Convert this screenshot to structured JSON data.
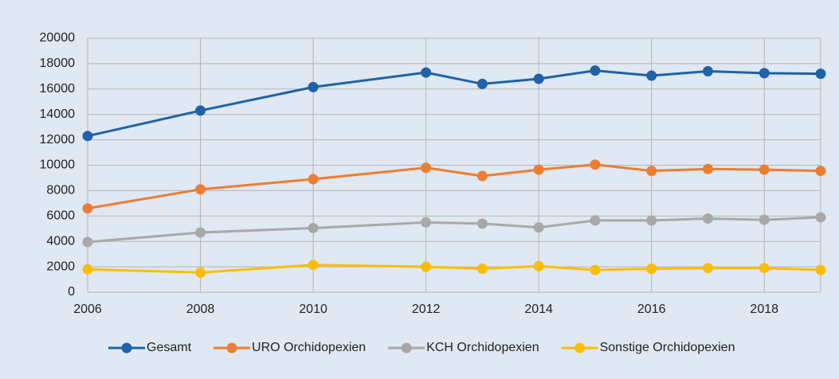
{
  "chart_data": {
    "type": "line",
    "x": [
      2006,
      2008,
      2010,
      2012,
      2013,
      2014,
      2015,
      2016,
      2017,
      2018,
      2019
    ],
    "series": [
      {
        "name": "Gesamt",
        "color": "#1f62a6",
        "values": [
          12300,
          14300,
          16150,
          17300,
          16400,
          16800,
          17450,
          17050,
          17400,
          17250,
          17200
        ]
      },
      {
        "name": "URO Orchidopexien",
        "color": "#ed7d31",
        "values": [
          6600,
          8100,
          8900,
          9800,
          9150,
          9650,
          10050,
          9550,
          9700,
          9650,
          9550
        ]
      },
      {
        "name": "KCH Orchidopexien",
        "color": "#a8a8a8",
        "values": [
          3950,
          4700,
          5050,
          5500,
          5400,
          5100,
          5650,
          5650,
          5800,
          5700,
          5900
        ]
      },
      {
        "name": "Sonstige Orchidopexien",
        "color": "#fbbd06",
        "values": [
          1800,
          1550,
          2150,
          2000,
          1850,
          2050,
          1750,
          1850,
          1900,
          1900,
          1750
        ]
      }
    ],
    "xlim": [
      2006,
      2019
    ],
    "xticks": [
      2006,
      2008,
      2010,
      2012,
      2014,
      2016,
      2018
    ],
    "ylim": [
      0,
      20000
    ],
    "yticks": [
      0,
      2000,
      4000,
      6000,
      8000,
      10000,
      12000,
      14000,
      16000,
      18000,
      20000
    ],
    "grid": true,
    "legend": "bottom"
  }
}
